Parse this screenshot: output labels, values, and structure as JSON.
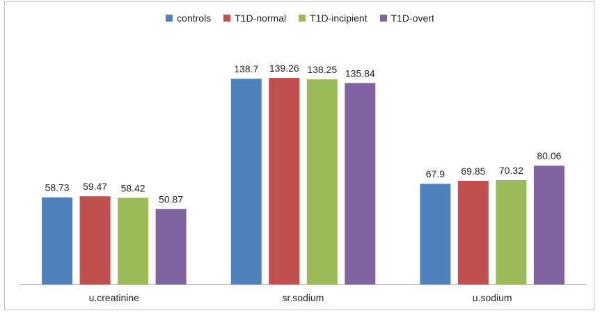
{
  "chart_data": {
    "type": "bar",
    "categories": [
      "u.creatinine",
      "sr.sodium",
      "u.sodium"
    ],
    "series": [
      {
        "name": "controls",
        "color": "#4f81bd",
        "values": [
          58.73,
          138.7,
          67.9
        ],
        "labels": [
          "58.73",
          "138.7",
          "67.9"
        ]
      },
      {
        "name": "T1D-normal",
        "color": "#c0504d",
        "values": [
          59.47,
          139.26,
          69.85
        ],
        "labels": [
          "59.47",
          "139.26",
          "69.85"
        ]
      },
      {
        "name": "T1D-incipient",
        "color": "#9bbb59",
        "values": [
          58.42,
          138.25,
          70.32
        ],
        "labels": [
          "58.42",
          "138.25",
          "70.32"
        ]
      },
      {
        "name": "T1D-overt",
        "color": "#8064a2",
        "values": [
          50.87,
          135.84,
          80.06
        ],
        "labels": [
          "50.87",
          "135.84",
          "80.06"
        ]
      }
    ],
    "legend_position": "top",
    "grid": false,
    "ylim": [
      0,
      160
    ]
  }
}
